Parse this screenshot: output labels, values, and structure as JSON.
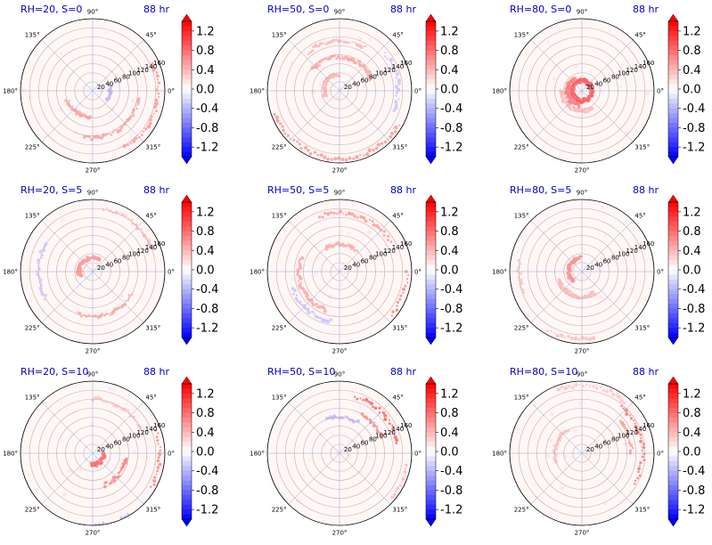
{
  "figure": {
    "title_color": "#0000cc",
    "colormap": "bwr",
    "colors": {
      "negative": "#0000ff",
      "zero": "#ffffff",
      "positive": "#ff0000"
    }
  },
  "chart_data": [
    {
      "type": "heatmap",
      "projection": "polar",
      "title_left": "RH=20, S=0",
      "title_right": "88 hr",
      "theta_ticks": [
        "0°",
        "45°",
        "90°",
        "135°",
        "180°",
        "225°",
        "270°",
        "315°"
      ],
      "r_ticks": [
        "20",
        "40",
        "60",
        "80",
        "100",
        "120",
        "140",
        "160"
      ],
      "r_range": [
        0,
        160
      ],
      "grid": true,
      "colorbar": {
        "ticks": [
          "1.2",
          "0.8",
          "0.4",
          "0.0",
          "-0.4",
          "-0.8",
          "-1.2"
        ],
        "range": [
          -1.4,
          1.4
        ],
        "extend": "both"
      },
      "features": [
        {
          "r": 104,
          "t1": 260,
          "t2": 350,
          "v": 0.55
        },
        {
          "r": 60,
          "t1": 200,
          "t2": 265,
          "v": 0.5
        },
        {
          "r": 145,
          "t1": 300,
          "t2": 25,
          "v": 0.6
        },
        {
          "r": 40,
          "t1": 330,
          "t2": 20,
          "v": -0.4
        }
      ]
    },
    {
      "type": "heatmap",
      "projection": "polar",
      "title_left": "RH=50, S=0",
      "title_right": "88 hr",
      "theta_ticks": [
        "0°",
        "45°",
        "90°",
        "135°",
        "180°",
        "225°",
        "270°",
        "315°"
      ],
      "r_ticks": [
        "20",
        "40",
        "60",
        "80",
        "100",
        "120",
        "140",
        "160"
      ],
      "r_range": [
        0,
        160
      ],
      "grid": true,
      "colorbar": {
        "ticks": [
          "1.2",
          "0.8",
          "0.4",
          "0.0",
          "-0.4",
          "-0.8",
          "-1.2"
        ],
        "range": [
          -1.4,
          1.4
        ],
        "extend": "both"
      },
      "features": [
        {
          "r": 150,
          "t1": 200,
          "t2": 330,
          "v": 0.6
        },
        {
          "r": 75,
          "t1": 20,
          "t2": 140,
          "v": 0.5
        },
        {
          "r": 110,
          "t1": 60,
          "t2": 130,
          "v": 0.45
        },
        {
          "r": 35,
          "t1": 90,
          "t2": 200,
          "v": 0.4
        },
        {
          "r": 130,
          "t1": 340,
          "t2": 40,
          "v": -0.35
        }
      ]
    },
    {
      "type": "heatmap",
      "projection": "polar",
      "title_left": "RH=80, S=0",
      "title_right": "88 hr",
      "theta_ticks": [
        "0°",
        "45°",
        "90°",
        "135°",
        "180°",
        "225°",
        "270°",
        "315°"
      ],
      "r_ticks": [
        "20",
        "40",
        "60",
        "80",
        "100",
        "120",
        "140",
        "160"
      ],
      "r_range": [
        0,
        160
      ],
      "grid": true,
      "colorbar": {
        "ticks": [
          "1.2",
          "0.8",
          "0.4",
          "0.0",
          "-0.4",
          "-0.8",
          "-1.2"
        ],
        "range": [
          -1.4,
          1.4
        ],
        "extend": "both"
      },
      "features": [
        {
          "r": 22,
          "t1": 0,
          "t2": 360,
          "v": 0.9
        },
        {
          "r": 32,
          "t1": 120,
          "t2": 260,
          "v": 0.7
        },
        {
          "r": 45,
          "t1": 180,
          "t2": 300,
          "v": 0.4
        }
      ]
    },
    {
      "type": "heatmap",
      "projection": "polar",
      "title_left": "RH=20, S=5",
      "title_right": "88 hr",
      "theta_ticks": [
        "0°",
        "45°",
        "90°",
        "135°",
        "180°",
        "225°",
        "270°",
        "315°"
      ],
      "r_ticks": [
        "20",
        "40",
        "60",
        "80",
        "100",
        "120",
        "140",
        "160"
      ],
      "r_range": [
        0,
        160
      ],
      "grid": true,
      "colorbar": {
        "ticks": [
          "1.2",
          "0.8",
          "0.4",
          "0.0",
          "-0.4",
          "-0.8",
          "-1.2"
        ],
        "range": [
          -1.4,
          1.4
        ],
        "extend": "both"
      },
      "features": [
        {
          "r": 30,
          "t1": 60,
          "t2": 200,
          "v": 0.55
        },
        {
          "r": 100,
          "t1": 250,
          "t2": 330,
          "v": 0.5
        },
        {
          "r": 140,
          "t1": 20,
          "t2": 80,
          "v": 0.4
        },
        {
          "r": 120,
          "t1": 150,
          "t2": 210,
          "v": -0.3
        }
      ]
    },
    {
      "type": "heatmap",
      "projection": "polar",
      "title_left": "RH=50, S=5",
      "title_right": "88 hr",
      "theta_ticks": [
        "0°",
        "45°",
        "90°",
        "135°",
        "180°",
        "225°",
        "270°",
        "315°"
      ],
      "r_ticks": [
        "20",
        "40",
        "60",
        "80",
        "100",
        "120",
        "140",
        "160"
      ],
      "r_range": [
        0,
        160
      ],
      "grid": true,
      "colorbar": {
        "ticks": [
          "1.2",
          "0.8",
          "0.4",
          "0.0",
          "-0.4",
          "-0.8",
          "-1.2"
        ],
        "range": [
          -1.4,
          1.4
        ],
        "extend": "both"
      },
      "features": [
        {
          "r": 130,
          "t1": 30,
          "t2": 110,
          "v": 0.6
        },
        {
          "r": 150,
          "t1": 320,
          "t2": 360,
          "v": 0.7
        },
        {
          "r": 90,
          "t1": 160,
          "t2": 250,
          "v": 0.5
        },
        {
          "r": 60,
          "t1": 50,
          "t2": 120,
          "v": 0.45
        },
        {
          "r": 110,
          "t1": 200,
          "t2": 260,
          "v": -0.35
        }
      ]
    },
    {
      "type": "heatmap",
      "projection": "polar",
      "title_left": "RH=80, S=5",
      "title_right": "88 hr",
      "theta_ticks": [
        "0°",
        "45°",
        "90°",
        "135°",
        "180°",
        "225°",
        "270°",
        "315°"
      ],
      "r_ticks": [
        "20",
        "40",
        "60",
        "80",
        "100",
        "120",
        "140",
        "160"
      ],
      "r_range": [
        0,
        160
      ],
      "grid": true,
      "colorbar": {
        "ticks": [
          "1.2",
          "0.8",
          "0.4",
          "0.0",
          "-0.4",
          "-0.8",
          "-1.2"
        ],
        "range": [
          -1.4,
          1.4
        ],
        "extend": "both"
      },
      "features": [
        {
          "r": 30,
          "t1": 90,
          "t2": 230,
          "v": 0.6
        },
        {
          "r": 55,
          "t1": 200,
          "t2": 300,
          "v": 0.4
        },
        {
          "r": 150,
          "t1": 240,
          "t2": 280,
          "v": 0.4
        },
        {
          "r": 140,
          "t1": 170,
          "t2": 200,
          "v": 0.35
        }
      ]
    },
    {
      "type": "heatmap",
      "projection": "polar",
      "title_left": "RH=20, S=10",
      "title_right": "88 hr",
      "theta_ticks": [
        "0°",
        "45°",
        "90°",
        "135°",
        "180°",
        "225°",
        "270°",
        "315°"
      ],
      "r_ticks": [
        "20",
        "40",
        "60",
        "80",
        "100",
        "120",
        "140",
        "160"
      ],
      "r_range": [
        0,
        160
      ],
      "grid": true,
      "colorbar": {
        "ticks": [
          "1.2",
          "0.8",
          "0.4",
          "0.0",
          "-0.4",
          "-0.8",
          "-1.2"
        ],
        "range": [
          -1.4,
          1.4
        ],
        "extend": "both"
      },
      "features": [
        {
          "r": 25,
          "t1": 260,
          "t2": 360,
          "v": 0.8
        },
        {
          "r": 75,
          "t1": 290,
          "t2": 350,
          "v": 0.7
        },
        {
          "r": 150,
          "t1": 330,
          "t2": 20,
          "v": 0.7
        },
        {
          "r": 120,
          "t1": 20,
          "t2": 90,
          "v": 0.35
        },
        {
          "r": 160,
          "t1": 260,
          "t2": 300,
          "v": -0.4
        }
      ]
    },
    {
      "type": "heatmap",
      "projection": "polar",
      "title_left": "RH=50, S=10",
      "title_right": "88 hr",
      "theta_ticks": [
        "0°",
        "45°",
        "90°",
        "135°",
        "180°",
        "225°",
        "270°",
        "315°"
      ],
      "r_ticks": [
        "20",
        "40",
        "60",
        "80",
        "100",
        "120",
        "140",
        "160"
      ],
      "r_range": [
        0,
        160
      ],
      "grid": true,
      "colorbar": {
        "ticks": [
          "1.2",
          "0.8",
          "0.4",
          "0.0",
          "-0.4",
          "-0.8",
          "-1.2"
        ],
        "range": [
          -1.4,
          1.4
        ],
        "extend": "both"
      },
      "features": [
        {
          "r": 130,
          "t1": 10,
          "t2": 75,
          "v": 0.9
        },
        {
          "r": 100,
          "t1": 20,
          "t2": 60,
          "v": 0.7
        },
        {
          "r": 80,
          "t1": 60,
          "t2": 110,
          "v": -0.4
        },
        {
          "r": 150,
          "t1": 320,
          "t2": 350,
          "v": 0.4
        }
      ]
    },
    {
      "type": "heatmap",
      "projection": "polar",
      "title_left": "RH=80, S=10",
      "title_right": "88 hr",
      "theta_ticks": [
        "0°",
        "45°",
        "90°",
        "135°",
        "180°",
        "225°",
        "270°",
        "315°"
      ],
      "r_ticks": [
        "20",
        "40",
        "60",
        "80",
        "100",
        "120",
        "140",
        "160"
      ],
      "r_range": [
        0,
        160
      ],
      "grid": true,
      "colorbar": {
        "ticks": [
          "1.2",
          "0.8",
          "0.4",
          "0.0",
          "-0.4",
          "-0.8",
          "-1.2"
        ],
        "range": [
          -1.4,
          1.4
        ],
        "extend": "both"
      },
      "features": [
        {
          "r": 135,
          "t1": 330,
          "t2": 50,
          "v": 0.8
        },
        {
          "r": 110,
          "t1": 0,
          "t2": 40,
          "v": 0.6
        },
        {
          "r": 150,
          "t1": 50,
          "t2": 110,
          "v": 0.35
        },
        {
          "r": 60,
          "t1": 120,
          "t2": 200,
          "v": 0.3
        }
      ]
    }
  ]
}
